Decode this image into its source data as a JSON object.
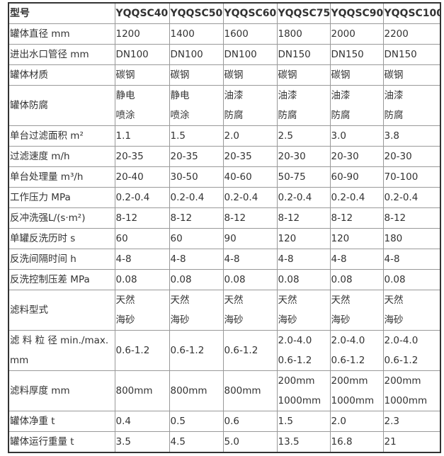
{
  "table": {
    "header": [
      "型号",
      "YQQSC40",
      "YQQSC50",
      "YQQSC60",
      "YQQSC75",
      "YQQSC90",
      "YQQSC100"
    ],
    "rows": [
      [
        [
          "罐体直径 mm"
        ],
        [
          "1200"
        ],
        [
          "1400"
        ],
        [
          "1600"
        ],
        [
          "1800"
        ],
        [
          "2000"
        ],
        [
          "2200"
        ]
      ],
      [
        [
          "进出水口管径 mm"
        ],
        [
          "DN100"
        ],
        [
          "DN100"
        ],
        [
          "DN100"
        ],
        [
          "DN150"
        ],
        [
          "DN150"
        ],
        [
          "DN150"
        ]
      ],
      [
        [
          "罐体材质"
        ],
        [
          "碳钢"
        ],
        [
          "碳钢"
        ],
        [
          "碳钢"
        ],
        [
          "碳钢"
        ],
        [
          "碳钢"
        ],
        [
          "碳钢"
        ]
      ],
      [
        [
          "罐体防腐"
        ],
        [
          "静电",
          "喷涂"
        ],
        [
          "静电",
          "喷涂"
        ],
        [
          "油漆",
          "防腐"
        ],
        [
          "油漆",
          "防腐"
        ],
        [
          "油漆",
          "防腐"
        ],
        [
          "油漆",
          "防腐"
        ]
      ],
      [
        [
          "单台过滤面积 m²"
        ],
        [
          "1.1"
        ],
        [
          "1.5"
        ],
        [
          "2.0"
        ],
        [
          "2.5"
        ],
        [
          "3.0"
        ],
        [
          "3.8"
        ]
      ],
      [
        [
          "过滤速度 m/h"
        ],
        [
          "20-35"
        ],
        [
          "20-35"
        ],
        [
          "20-35"
        ],
        [
          "20-30"
        ],
        [
          "20-30"
        ],
        [
          "20-30"
        ]
      ],
      [
        [
          "单台处理量  m³/h"
        ],
        [
          "20-40"
        ],
        [
          "30-50"
        ],
        [
          "40-60"
        ],
        [
          "50-75"
        ],
        [
          "60-90"
        ],
        [
          "70-100"
        ]
      ],
      [
        [
          "工作压力  MPa"
        ],
        [
          "0.2-0.4"
        ],
        [
          "0.2-0.4"
        ],
        [
          "0.2-0.4"
        ],
        [
          "0.2-0.4"
        ],
        [
          "0.2-0.4"
        ],
        [
          "0.2-0.4"
        ]
      ],
      [
        [
          "反冲洗强L/(s·m²)"
        ],
        [
          "8-12"
        ],
        [
          "8-12"
        ],
        [
          "8-12"
        ],
        [
          "8-12"
        ],
        [
          "8-12"
        ],
        [
          "8-12"
        ]
      ],
      [
        [
          "单罐反洗历时 s"
        ],
        [
          "60"
        ],
        [
          "60"
        ],
        [
          "90"
        ],
        [
          "120"
        ],
        [
          "120"
        ],
        [
          "180"
        ]
      ],
      [
        [
          "反洗间隔时间  h"
        ],
        [
          "4-8"
        ],
        [
          "4-8"
        ],
        [
          "4-8"
        ],
        [
          "4-8"
        ],
        [
          "4-8"
        ],
        [
          "4-8"
        ]
      ],
      [
        [
          "反洗控制压差 MPa"
        ],
        [
          "0.08"
        ],
        [
          "0.08"
        ],
        [
          "0.08"
        ],
        [
          "0.08"
        ],
        [
          "0.08"
        ],
        [
          "0.08"
        ]
      ],
      [
        [
          "滤料型式"
        ],
        [
          "天然",
          "海砂"
        ],
        [
          "天然",
          "海砂"
        ],
        [
          "天然",
          "海砂"
        ],
        [
          "天然",
          "海砂"
        ],
        [
          "天然",
          "海砂"
        ],
        [
          "天然",
          "海砂"
        ]
      ],
      [
        [
          "滤 料 粒 径  min./max.",
          " mm"
        ],
        [
          "0.6-1.2"
        ],
        [
          "0.6-1.2"
        ],
        [
          "0.6-1.2"
        ],
        [
          "2.0-4.0",
          "0.6-1.2"
        ],
        [
          "2.0-4.0",
          "0.6-1.2"
        ],
        [
          "2.0-4.0",
          "0.6-1.2"
        ]
      ],
      [
        [
          "滤料厚度  mm"
        ],
        [
          "800mm"
        ],
        [
          "800mm"
        ],
        [
          "800mm"
        ],
        [
          "200mm",
          "1000mm"
        ],
        [
          "200mm",
          "1000mm"
        ],
        [
          "200mm",
          "1000mm"
        ]
      ],
      [
        [
          "罐体净重  t"
        ],
        [
          "0.4"
        ],
        [
          "0.5"
        ],
        [
          "0.6"
        ],
        [
          "1.5"
        ],
        [
          "2.0"
        ],
        [
          "2.3"
        ]
      ],
      [
        [
          "罐体运行重量 t"
        ],
        [
          "3.5"
        ],
        [
          "4.5"
        ],
        [
          "5.0"
        ],
        [
          "13.5"
        ],
        [
          "16.8"
        ],
        [
          "21"
        ]
      ]
    ]
  }
}
